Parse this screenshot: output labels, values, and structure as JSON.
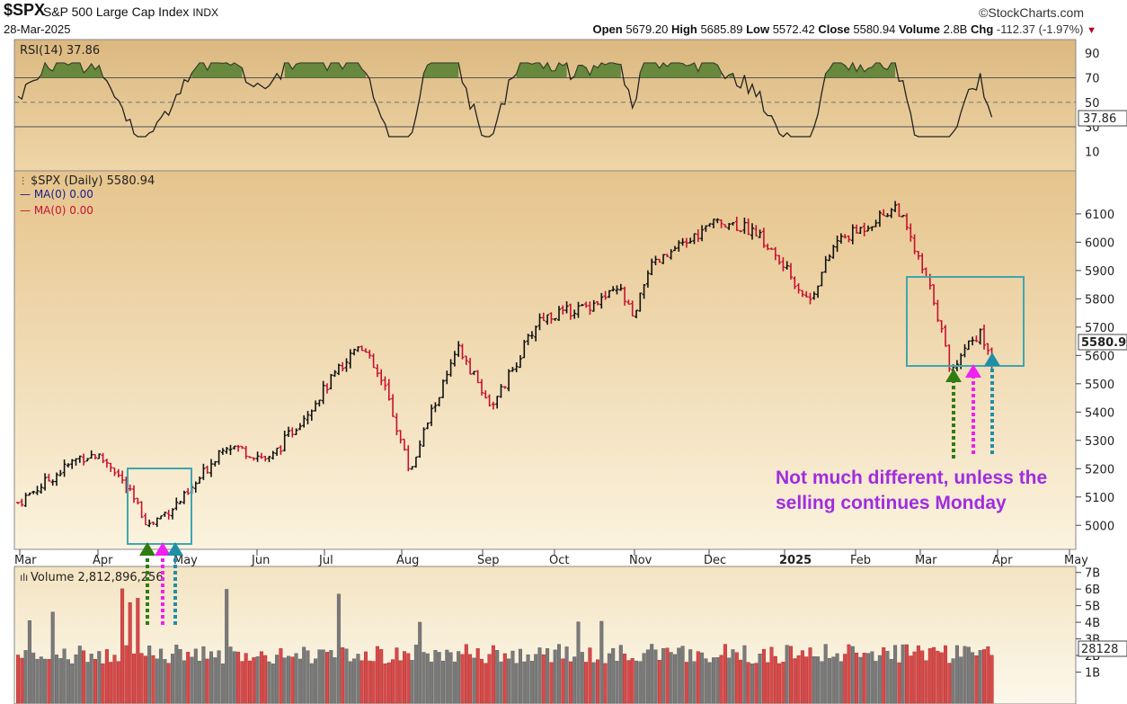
{
  "header": {
    "symbol": "$SPX",
    "name": "S&P 500 Large Cap Index",
    "exchange": "INDX",
    "date": "28-Mar-2025",
    "brand": "©StockCharts.com",
    "open_label": "Open",
    "open": "5679.20",
    "high_label": "High",
    "high": "5685.89",
    "low_label": "Low",
    "low": "5572.42",
    "close_label": "Close",
    "close": "5580.94",
    "volume_label": "Volume",
    "volume": "2.8B",
    "chg_label": "Chg",
    "chg": "-112.37 (-1.97%)"
  },
  "rsi_panel": {
    "label": "RSI(14) 37.86",
    "value_tag": "37.86",
    "ticks": [
      "90",
      "70",
      "50",
      "30",
      "10"
    ]
  },
  "price_panel": {
    "label": "$SPX (Daily) 5580.94",
    "ma1": "MA(0) 0.00",
    "ma2": "MA(0) 0.00",
    "value_tag": "5580.9",
    "ticks": [
      "6100",
      "6000",
      "5900",
      "5800",
      "5700",
      "5600",
      "5500",
      "5400",
      "5300",
      "5200",
      "5100",
      "5000"
    ]
  },
  "x_axis": {
    "labels": [
      "Mar",
      "Apr",
      "May",
      "Jun",
      "Jul",
      "Aug",
      "Sep",
      "Oct",
      "Nov",
      "Dec",
      "2025",
      "Feb",
      "Mar",
      "Apr",
      "May"
    ]
  },
  "volume_panel": {
    "label": "Volume 2,812,896,256",
    "value_tag": "28128",
    "ticks": [
      "7B",
      "6B",
      "5B",
      "4B",
      "3B",
      "2B",
      "1B"
    ]
  },
  "annotation": {
    "line1": "Not much different, unless the",
    "line2": "selling continues Monday"
  },
  "colors": {
    "up": "#111111",
    "down": "#c8102e",
    "panel_top": "#e6c78f",
    "panel_bottom": "#fbf3dc",
    "box": "#3fa6b0",
    "arrow_green": "#2f7d10",
    "arrow_magenta": "#f020f0",
    "arrow_teal": "#1f8fa8",
    "rsi_fill": "#4a7a2a"
  },
  "chart_data": {
    "type": "line",
    "title": "$SPX (Daily) 5580.94",
    "x": [
      "Mar 2024",
      "Apr 2024",
      "May 2024",
      "Jun 2024",
      "Jul 2024",
      "Aug 2024",
      "Sep 2024",
      "Oct 2024",
      "Nov 2024",
      "Dec 2024",
      "Jan 2025",
      "Feb 2025",
      "Mar 2025"
    ],
    "series": [
      {
        "values": [
          5100,
          5240,
          5050,
          5300,
          5470,
          5420,
          5610,
          5780,
          5760,
          6060,
          6000,
          6080,
          5580
        ]
      }
    ],
    "ylim": [
      4950,
      6160
    ],
    "log": false,
    "grid": false,
    "rsi": {
      "latest": 37.86,
      "range": [
        0,
        100
      ],
      "levels": [
        30,
        70
      ]
    },
    "volume": {
      "latest": 2812896256,
      "unit": "B",
      "range": [
        0,
        7.2
      ]
    }
  }
}
